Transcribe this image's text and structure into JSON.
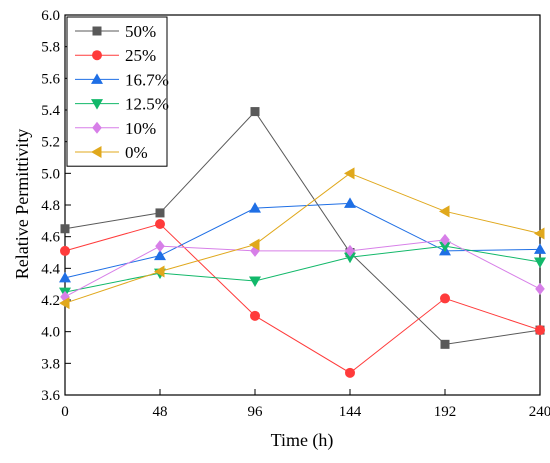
{
  "chart_data": {
    "type": "line",
    "xlabel": "Time (h)",
    "ylabel": "Relative Permittivity",
    "x": [
      0,
      48,
      96,
      144,
      192,
      240
    ],
    "xlim": [
      0,
      240
    ],
    "ylim": [
      3.6,
      6.0
    ],
    "x_ticks": [
      "0",
      "48",
      "96",
      "144",
      "192",
      "240"
    ],
    "y_ticks": [
      "3.6",
      "3.8",
      "4.0",
      "4.2",
      "4.4",
      "4.6",
      "4.8",
      "5.0",
      "5.2",
      "5.4",
      "5.6",
      "5.8",
      "6.0"
    ],
    "grid": false,
    "legend_position": "top-left",
    "series": [
      {
        "name": "50%",
        "color": "#595959",
        "marker": "square",
        "values": [
          4.65,
          4.75,
          5.39,
          4.5,
          3.92,
          4.01
        ]
      },
      {
        "name": "25%",
        "color": "#ff3b3b",
        "marker": "circle",
        "values": [
          4.51,
          4.68,
          4.1,
          3.74,
          4.21,
          4.01
        ]
      },
      {
        "name": "16.7%",
        "color": "#1f6fe5",
        "marker": "triangle-up",
        "values": [
          4.34,
          4.48,
          4.78,
          4.81,
          4.51,
          4.52
        ]
      },
      {
        "name": "12.5%",
        "color": "#12b86a",
        "marker": "triangle-down",
        "values": [
          4.25,
          4.37,
          4.32,
          4.47,
          4.54,
          4.44
        ]
      },
      {
        "name": "10%",
        "color": "#d77fe8",
        "marker": "diamond",
        "values": [
          4.22,
          4.54,
          4.51,
          4.51,
          4.58,
          4.27
        ]
      },
      {
        "name": "0%",
        "color": "#e0a81c",
        "marker": "triangle-left",
        "values": [
          4.18,
          4.38,
          4.55,
          5.0,
          4.76,
          4.62
        ]
      }
    ]
  }
}
